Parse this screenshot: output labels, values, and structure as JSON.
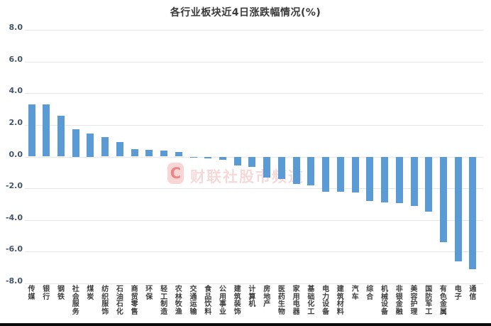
{
  "title": "各行业板块近4日涨跌幅情况(%)",
  "watermark": {
    "logo_text": "C",
    "text": "财联社股市频道"
  },
  "chart_data": {
    "type": "bar",
    "title": "各行业板块近4日涨跌幅情况(%)",
    "categories": [
      "传媒",
      "银行",
      "钢铁",
      "社会服务",
      "煤炭",
      "纺织服饰",
      "石油石化",
      "商贸零售",
      "环保",
      "轻工制造",
      "农林牧渔",
      "交通运输",
      "食品饮料",
      "公用事业",
      "建筑装饰",
      "计算机",
      "房地产",
      "医药生物",
      "家用电器",
      "基础化工",
      "电力设备",
      "建筑材料",
      "汽车",
      "综合",
      "机械设备",
      "非银金融",
      "美容护理",
      "国防军工",
      "有色金属",
      "电子",
      "通信"
    ],
    "values": [
      3.3,
      3.28,
      2.56,
      1.75,
      1.48,
      1.23,
      0.9,
      0.49,
      0.42,
      0.39,
      0.31,
      -0.08,
      -0.13,
      -0.2,
      -0.55,
      -0.65,
      -1.3,
      -1.4,
      -1.73,
      -1.8,
      -2.2,
      -2.22,
      -2.25,
      -2.78,
      -2.9,
      -2.95,
      -3.1,
      -3.45,
      -5.4,
      -6.6,
      -7.1
    ],
    "xlabel": "",
    "ylabel": "",
    "ylim": [
      -8,
      8
    ],
    "ytick_interval": 2,
    "yticks": [
      "8.0",
      "6.0",
      "4.0",
      "2.0",
      "0.0",
      "-2.0",
      "-4.0",
      "-6.0",
      "-8.0"
    ],
    "grid": true,
    "legend": false,
    "bar_color": "#5b9bd5",
    "gridline_color": "#e3e6ec",
    "ytick_color": "#44546a",
    "xtick_color": "#3d3d3d"
  }
}
